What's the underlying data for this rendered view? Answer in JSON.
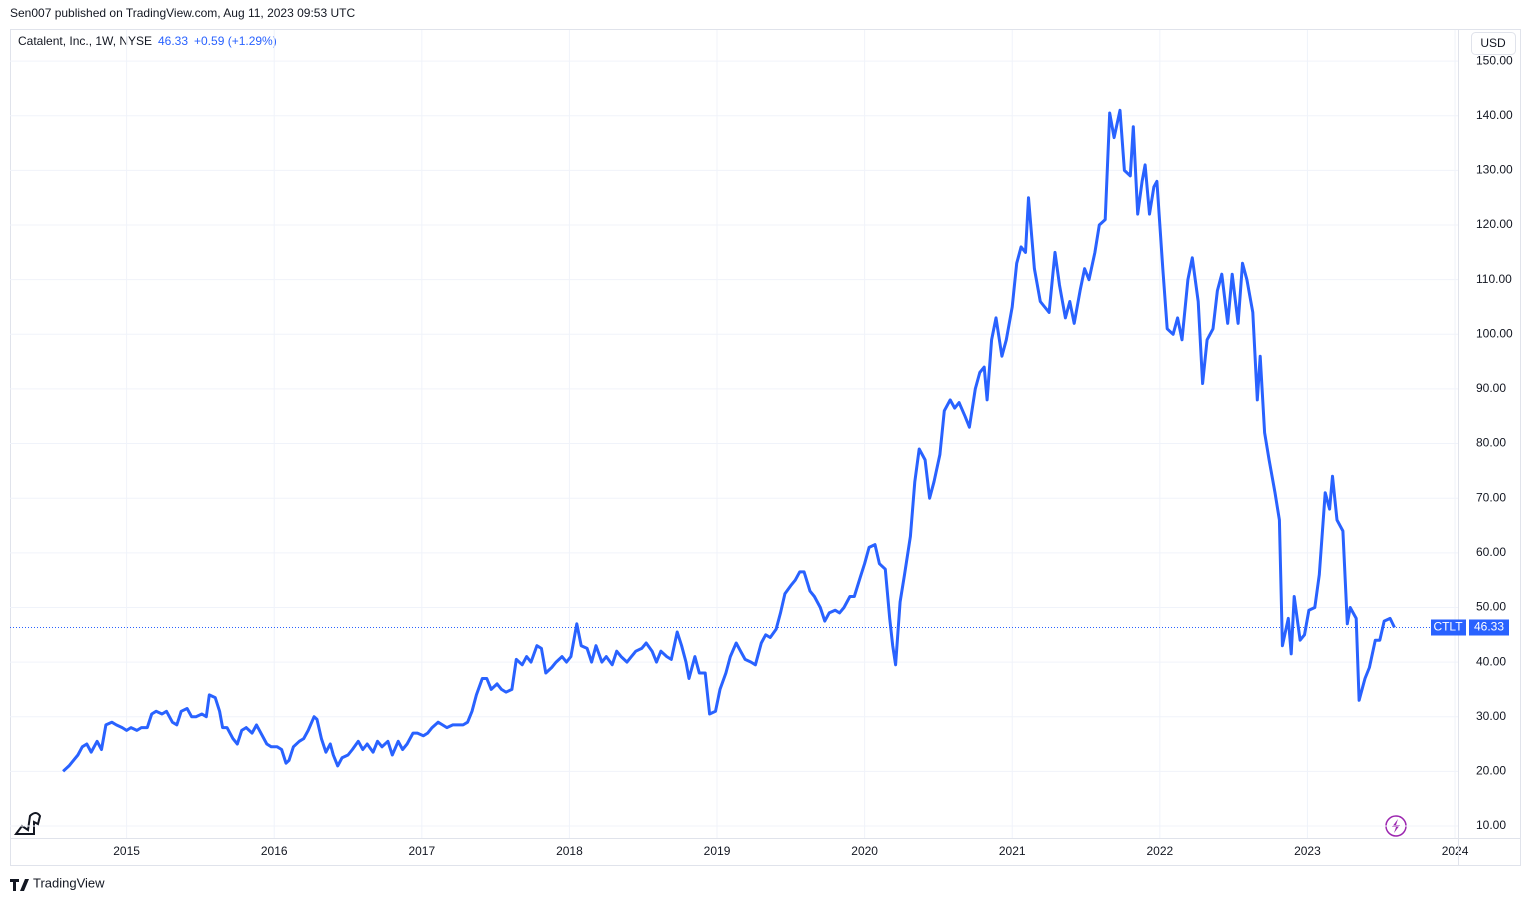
{
  "header": "Sen007 published on TradingView.com, Aug 11, 2023 09:53 UTC",
  "currency": "USD",
  "footer": "TradingView",
  "chart_data": {
    "type": "line",
    "title": "Catalent, Inc., 1W, NYSE",
    "last_price": 46.33,
    "change": "+0.59 (+1.29%)",
    "xlim": [
      2014.21,
      2024.02
    ],
    "xticks": [
      2015,
      2016,
      2017,
      2018,
      2019,
      2020,
      2021,
      2022,
      2023,
      2024
    ],
    "ylim": [
      7.8,
      155.7
    ],
    "yticks": [
      {
        "value": 10,
        "label": "10.00"
      },
      {
        "value": 20,
        "label": "20.00"
      },
      {
        "value": 30,
        "label": "30.00"
      },
      {
        "value": 40,
        "label": "40.00"
      },
      {
        "value": 50,
        "label": "50.00"
      },
      {
        "value": 60,
        "label": "60.00"
      },
      {
        "value": 70,
        "label": "70.00"
      },
      {
        "value": 80,
        "label": "80.00"
      },
      {
        "value": 90,
        "label": "90.00"
      },
      {
        "value": 100,
        "label": "100.00"
      },
      {
        "value": 110,
        "label": "110.00"
      },
      {
        "value": 120,
        "label": "120.00"
      },
      {
        "value": 130,
        "label": "130.00"
      },
      {
        "value": 140,
        "label": "140.00"
      },
      {
        "value": 150,
        "label": "150.00"
      }
    ],
    "grid": true,
    "x": [
      2014.57,
      2014.61,
      2014.67,
      2014.7,
      2014.73,
      2014.76,
      2014.8,
      2014.83,
      2014.86,
      2014.9,
      2014.93,
      2014.97,
      2015.0,
      2015.03,
      2015.07,
      2015.1,
      2015.14,
      2015.17,
      2015.2,
      2015.24,
      2015.27,
      2015.31,
      2015.34,
      2015.37,
      2015.41,
      2015.44,
      2015.47,
      2015.51,
      2015.54,
      2015.56,
      2015.6,
      2015.63,
      2015.65,
      2015.68,
      2015.72,
      2015.75,
      2015.78,
      2015.81,
      2015.85,
      2015.88,
      2015.91,
      2015.95,
      2015.98,
      2016.02,
      2016.05,
      2016.08,
      2016.1,
      2016.13,
      2016.17,
      2016.2,
      2016.23,
      2016.27,
      2016.29,
      2016.32,
      2016.35,
      2016.38,
      2016.4,
      2016.43,
      2016.46,
      2016.5,
      2016.53,
      2016.57,
      2016.6,
      2016.63,
      2016.67,
      2016.7,
      2016.73,
      2016.77,
      2016.8,
      2016.84,
      2016.87,
      2016.9,
      2016.94,
      2016.97,
      2017.01,
      2017.04,
      2017.07,
      2017.11,
      2017.14,
      2017.17,
      2017.21,
      2017.24,
      2017.28,
      2017.31,
      2017.34,
      2017.37,
      2017.41,
      2017.44,
      2017.47,
      2017.51,
      2017.54,
      2017.57,
      2017.61,
      2017.64,
      2017.68,
      2017.71,
      2017.74,
      2017.78,
      2017.81,
      2017.84,
      2017.88,
      2017.91,
      2017.95,
      2017.98,
      2018.01,
      2018.05,
      2018.08,
      2018.12,
      2018.15,
      2018.18,
      2018.22,
      2018.25,
      2018.29,
      2018.32,
      2018.35,
      2018.39,
      2018.42,
      2018.45,
      2018.49,
      2018.52,
      2018.56,
      2018.59,
      2018.62,
      2018.66,
      2018.69,
      2018.73,
      2018.76,
      2018.79,
      2018.81,
      2018.85,
      2018.88,
      2018.92,
      2018.95,
      2018.99,
      2019.02,
      2019.06,
      2019.09,
      2019.13,
      2019.16,
      2019.19,
      2019.23,
      2019.26,
      2019.3,
      2019.33,
      2019.36,
      2019.4,
      2019.43,
      2019.46,
      2019.5,
      2019.53,
      2019.56,
      2019.59,
      2019.63,
      2019.66,
      2019.7,
      2019.73,
      2019.76,
      2019.8,
      2019.83,
      2019.86,
      2019.9,
      2019.93,
      2019.97,
      2020.0,
      2020.03,
      2020.07,
      2020.1,
      2020.14,
      2020.17,
      2020.19,
      2020.21,
      2020.24,
      2020.27,
      2020.31,
      2020.34,
      2020.37,
      2020.41,
      2020.44,
      2020.47,
      2020.51,
      2020.54,
      2020.58,
      2020.61,
      2020.64,
      2020.68,
      2020.71,
      2020.75,
      2020.78,
      2020.81,
      2020.83,
      2020.86,
      2020.89,
      2020.93,
      2020.96,
      2021.0,
      2021.03,
      2021.06,
      2021.09,
      2021.11,
      2021.15,
      2021.19,
      2021.22,
      2021.25,
      2021.29,
      2021.32,
      2021.36,
      2021.39,
      2021.42,
      2021.46,
      2021.49,
      2021.52,
      2021.56,
      2021.59,
      2021.63,
      2021.66,
      2021.69,
      2021.73,
      2021.76,
      2021.8,
      2021.82,
      2021.85,
      2021.88,
      2021.9,
      2021.93,
      2021.96,
      2021.98,
      2022.02,
      2022.05,
      2022.09,
      2022.12,
      2022.15,
      2022.19,
      2022.22,
      2022.26,
      2022.29,
      2022.32,
      2022.36,
      2022.39,
      2022.42,
      2022.46,
      2022.49,
      2022.53,
      2022.56,
      2022.59,
      2022.63,
      2022.66,
      2022.68,
      2022.71,
      2022.74,
      2022.78,
      2022.81,
      2022.83,
      2022.87,
      2022.89,
      2022.91,
      2022.95,
      2022.98,
      2023.01,
      2023.05,
      2023.08,
      2023.12,
      2023.15,
      2023.17,
      2023.2,
      2023.24,
      2023.27,
      2023.29,
      2023.33,
      2023.35,
      2023.39,
      2023.42,
      2023.46,
      2023.49,
      2023.52,
      2023.56,
      2023.59
    ],
    "series": [
      {
        "name": "CTLT",
        "color": "#2962ff",
        "values": [
          20,
          21,
          23,
          24.5,
          25,
          23.5,
          25.5,
          24,
          28.5,
          29,
          28.5,
          28,
          27.5,
          28,
          27.5,
          28,
          28,
          30.5,
          31,
          30.5,
          31,
          29,
          28.5,
          31,
          31.5,
          30,
          30,
          30.5,
          30,
          34,
          33.5,
          31,
          28,
          28,
          26,
          25,
          27.5,
          28,
          27,
          28.5,
          27,
          25,
          24.5,
          24.5,
          24,
          21.5,
          22,
          24.5,
          25.5,
          26,
          27.5,
          30,
          29.5,
          26,
          23.5,
          25,
          23,
          21,
          22.5,
          23,
          24,
          25.5,
          24,
          25,
          23.5,
          25.5,
          24.5,
          25.5,
          23,
          25.5,
          24,
          25,
          27,
          27,
          26.5,
          27,
          28,
          29,
          28.5,
          28,
          28.5,
          28.5,
          28.5,
          29,
          31,
          34,
          37,
          37,
          35,
          36,
          35,
          34.5,
          35,
          40.5,
          39.5,
          41,
          40,
          43,
          42.5,
          38,
          39,
          40,
          41,
          40,
          41,
          47,
          43,
          42.5,
          40,
          43,
          40,
          41,
          39.5,
          42,
          41,
          40,
          41,
          42,
          42.5,
          43.5,
          42,
          40,
          42,
          41,
          40.5,
          45.5,
          43,
          40,
          37,
          41,
          38,
          38,
          30.5,
          31,
          35,
          38,
          41,
          43.5,
          42,
          40.5,
          40,
          39.5,
          43.5,
          45,
          44.5,
          46,
          49,
          52.5,
          54,
          55,
          56.5,
          56.5,
          53,
          52,
          50,
          47.5,
          49,
          49.5,
          49,
          50,
          52,
          52,
          55.5,
          58,
          61,
          61.5,
          58,
          57,
          48,
          43,
          39.5,
          51,
          56,
          63,
          73,
          79,
          77,
          70,
          73,
          78,
          86,
          88,
          86.5,
          87.5,
          85,
          83,
          90,
          93,
          94,
          88,
          99,
          103,
          96,
          99,
          105,
          113,
          116,
          115,
          125,
          112,
          106,
          105,
          104,
          115,
          109,
          103,
          106,
          102,
          108,
          112,
          110,
          115,
          120,
          121,
          140.5,
          136,
          141,
          130,
          129,
          138,
          122,
          128,
          131,
          122,
          127,
          128,
          112,
          101,
          100,
          103,
          99,
          110,
          114,
          106,
          91,
          99,
          101,
          108,
          111,
          102,
          111,
          102,
          113,
          110,
          104,
          88,
          96,
          82,
          77,
          71,
          66,
          43,
          48,
          41.5,
          52,
          44,
          45,
          49.5,
          50,
          56,
          71,
          68,
          74,
          66,
          64,
          47,
          50,
          48,
          33,
          37,
          39,
          44,
          44,
          47.5,
          48,
          46.33
        ]
      }
    ]
  }
}
